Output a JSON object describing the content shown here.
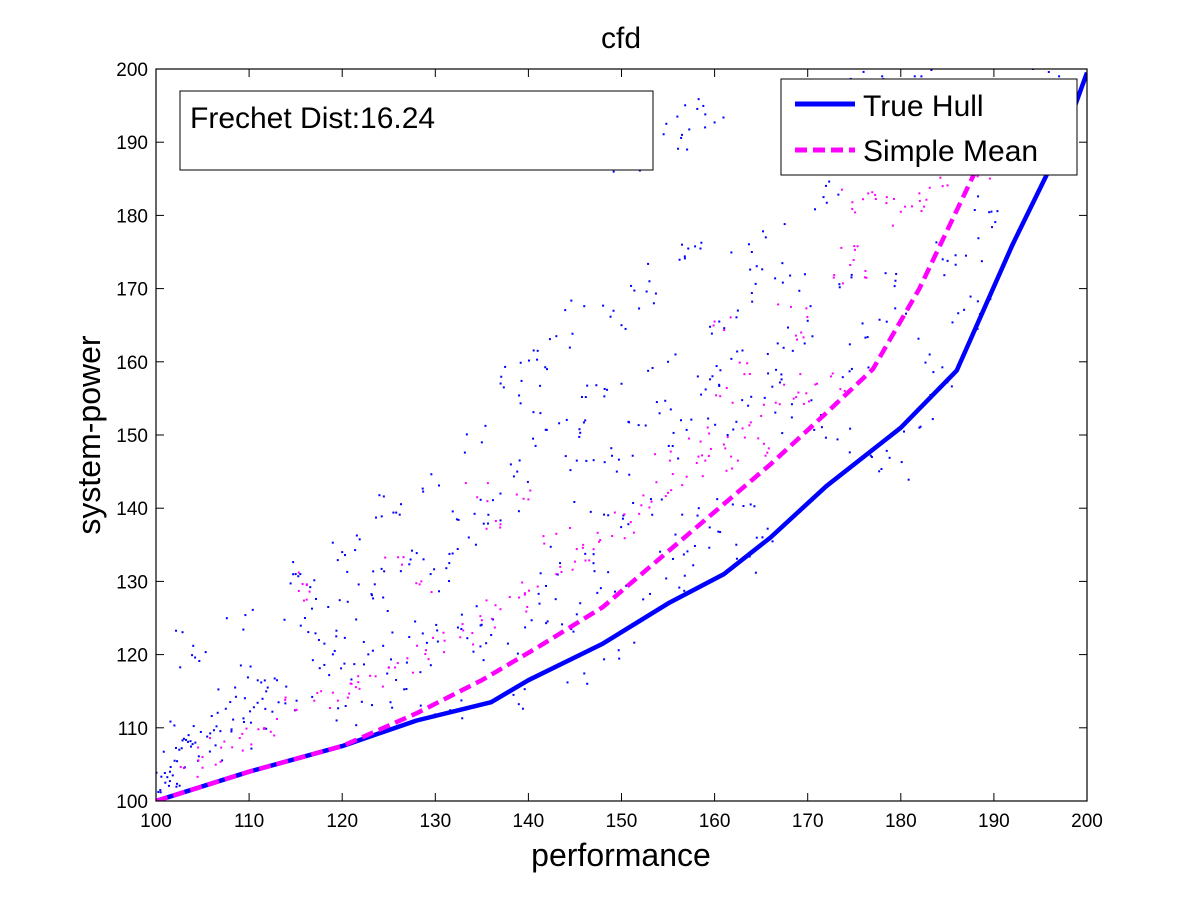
{
  "chart_data": {
    "type": "scatter",
    "title": "cfd",
    "xlabel": "performance",
    "ylabel": "system-power",
    "xlim": [
      100,
      200
    ],
    "ylim": [
      100,
      200
    ],
    "xticks": [
      100,
      110,
      120,
      130,
      140,
      150,
      160,
      170,
      180,
      190,
      200
    ],
    "yticks": [
      100,
      110,
      120,
      130,
      140,
      150,
      160,
      170,
      180,
      190,
      200
    ],
    "grid": false,
    "legend_position": "top-right",
    "annotation": "Frechet Dist:16.24",
    "series": [
      {
        "name": "True Hull",
        "kind": "line",
        "style": "solid",
        "color": "#0000ff",
        "x": [
          100,
          110,
          120,
          128,
          136,
          140,
          148,
          155,
          161,
          166,
          172,
          180,
          186,
          192,
          197,
          200
        ],
        "y": [
          100,
          104,
          107.5,
          111,
          113.5,
          116.5,
          121.5,
          127,
          131,
          136,
          143,
          151,
          158.8,
          176,
          189,
          199.5
        ]
      },
      {
        "name": "Simple Mean",
        "kind": "line",
        "style": "dashed",
        "color": "#ff00ff",
        "x": [
          100,
          110,
          120,
          128,
          135,
          141,
          148,
          154,
          160,
          166,
          172,
          177,
          182,
          188,
          193
        ],
        "y": [
          100,
          104,
          107.5,
          112,
          116.5,
          121,
          126.5,
          133,
          139.5,
          146,
          153,
          159,
          170,
          186,
          198
        ]
      }
    ],
    "scatter_groups": [
      {
        "color": "#0000ff",
        "spread": [
          0.5,
          2.2
        ],
        "points": [
          [
            100.5,
            101.2
          ],
          [
            101,
            102.5
          ],
          [
            101.5,
            104
          ],
          [
            102,
            105.5
          ],
          [
            102.5,
            107
          ],
          [
            103,
            108.5
          ],
          [
            103.5,
            109
          ],
          [
            104,
            121.2
          ],
          [
            104.2,
            119.6
          ],
          [
            109.6,
            125.4
          ],
          [
            115,
            131
          ],
          [
            115.5,
            131
          ],
          [
            120,
            134
          ],
          [
            120.3,
            133.6
          ],
          [
            125.5,
            139.4
          ],
          [
            125.8,
            139.4
          ],
          [
            145.8,
            191.8
          ],
          [
            148,
            188.8
          ],
          [
            148.6,
            189.8
          ],
          [
            151,
            188.3
          ],
          [
            152,
            188.3
          ],
          [
            156,
            193.5
          ],
          [
            156.5,
            191
          ],
          [
            159,
            193.8
          ],
          [
            160,
            192.7
          ],
          [
            176,
            199.6
          ],
          [
            178,
            199
          ],
          [
            181.5,
            199
          ],
          [
            194.2,
            200
          ],
          [
            197,
            199
          ],
          [
            156.5,
            176
          ],
          [
            156.8,
            174.4
          ],
          [
            153,
            171
          ],
          [
            152.7,
            169.6
          ],
          [
            146,
            167.6
          ],
          [
            150,
            165
          ],
          [
            143,
            163.5
          ],
          [
            141,
            161.5
          ],
          [
            142,
            159
          ],
          [
            137.5,
            159.3
          ],
          [
            139,
            155.4
          ],
          [
            145.2,
            146.5
          ],
          [
            149.5,
            145
          ],
          [
            135,
            149
          ],
          [
            160.5,
            165.5
          ],
          [
            168.4,
            161.5
          ],
          [
            174.5,
            158.7
          ],
          [
            182,
            151
          ],
          [
            185,
            157.2
          ],
          [
            188.5,
            166.5
          ],
          [
            187,
            174.5
          ],
          [
            184.5,
            174
          ],
          [
            179.5,
            172
          ],
          [
            172,
            186
          ],
          [
            164,
            175
          ],
          [
            165.5,
            177
          ],
          [
            162.5,
            167
          ],
          [
            170,
            165.6
          ],
          [
            166.6,
            158.9
          ],
          [
            155,
            160
          ],
          [
            160.5,
            156.7
          ],
          [
            150,
            157
          ],
          [
            130.4,
            143.1
          ],
          [
            132.5,
            138.4
          ],
          [
            127.5,
            134.2
          ],
          [
            123.5,
            129.6
          ],
          [
            118.5,
            126.5
          ],
          [
            116,
            125
          ],
          [
            113,
            116.5
          ],
          [
            112,
            115.5
          ],
          [
            107.5,
            112.6
          ],
          [
            106.5,
            110.2
          ],
          [
            105.5,
            108.8
          ],
          [
            108.5,
            115.5
          ],
          [
            111.3,
            116.2
          ],
          [
            117.5,
            122
          ],
          [
            119.2,
            120.5
          ],
          [
            121.5,
            124.8
          ],
          [
            124.4,
            127.8
          ],
          [
            126.3,
            131.4
          ],
          [
            129.5,
            131
          ],
          [
            131.5,
            132.5
          ],
          [
            133.6,
            136
          ],
          [
            135.7,
            139.1
          ],
          [
            137,
            142
          ],
          [
            138.8,
            145
          ],
          [
            140.5,
            149.5
          ],
          [
            143.3,
            151.6
          ],
          [
            146.1,
            152
          ],
          [
            147.3,
            156.8
          ],
          [
            148.9,
            148.2
          ],
          [
            152.6,
            151.3
          ],
          [
            155.5,
            148.5
          ],
          [
            157.5,
            152.1
          ],
          [
            161.4,
            150
          ],
          [
            163.6,
            154
          ],
          [
            166.2,
            156.6
          ],
          [
            168.3,
            152.4
          ],
          [
            170.7,
            150.7
          ],
          [
            173.2,
            149.4
          ],
          [
            176.9,
            147
          ],
          [
            180.1,
            146.3
          ],
          [
            176.2,
            163.3
          ],
          [
            179.4,
            167.3
          ],
          [
            183.1,
            161
          ],
          [
            186.8,
            167.1
          ],
          [
            188.3,
            182.6
          ],
          [
            189.8,
            178.4
          ],
          [
            173.4,
            170.6
          ],
          [
            169.1,
            169.7
          ],
          [
            166.5,
            171.4
          ],
          [
            171.7,
            182.5
          ],
          [
            161.8,
            160.4
          ],
          [
            158.2,
            158
          ],
          [
            153.8,
            154.5
          ],
          [
            146.7,
            139.5
          ],
          [
            150.2,
            139
          ],
          [
            153.3,
            139.1
          ],
          [
            155.8,
            136.4
          ],
          [
            158.3,
            140
          ],
          [
            160.4,
            136.8
          ],
          [
            163.1,
            140.3
          ],
          [
            165.7,
            137.2
          ],
          [
            143.4,
            132.5
          ],
          [
            147.1,
            131.4
          ],
          [
            150.5,
            129.4
          ],
          [
            141.1,
            128.3
          ],
          [
            136.2,
            124.8
          ],
          [
            132.8,
            123.5
          ],
          [
            130.2,
            123.3
          ],
          [
            127.2,
            122.4
          ],
          [
            124.4,
            121.2
          ],
          [
            121.3,
            118.7
          ],
          [
            118.6,
            117.2
          ],
          [
            115.1,
            113.7
          ],
          [
            112.5,
            112.2
          ],
          [
            110.2,
            110.7
          ],
          [
            108.1,
            109.5
          ],
          [
            106.4,
            107.6
          ],
          [
            104.6,
            106.1
          ],
          [
            103.1,
            104.6
          ],
          [
            101.8,
            103.5
          ],
          [
            119.4,
            111
          ],
          [
            123.2,
            113.1
          ],
          [
            126.9,
            115.3
          ],
          [
            128.4,
            117.6
          ],
          [
            134.1,
            120.4
          ],
          [
            137.8,
            121.5
          ],
          [
            141.9,
            124.3
          ],
          [
            145.2,
            125.5
          ],
          [
            149.3,
            128.6
          ],
          [
            154.8,
            130.4
          ],
          [
            157.7,
            132.2
          ],
          [
            162.4,
            133.1
          ],
          [
            144.2,
            116.2
          ],
          [
            149.7,
            120.6
          ],
          [
            138.4,
            114.5
          ],
          [
            131.6,
            112.4
          ]
        ]
      },
      {
        "color": "#ff00ff",
        "spread": [
          0.6,
          1.8
        ],
        "points": [
          [
            103,
            104.5
          ],
          [
            105,
            106
          ],
          [
            107,
            107.3
          ],
          [
            109,
            108.6
          ],
          [
            111,
            109.8
          ],
          [
            113,
            111.2
          ],
          [
            115,
            112.4
          ],
          [
            117,
            113.7
          ],
          [
            119,
            114.8
          ],
          [
            121,
            116
          ],
          [
            123,
            117.1
          ],
          [
            125,
            118.2
          ],
          [
            127,
            119.5
          ],
          [
            129,
            120.6
          ],
          [
            131,
            121.9
          ],
          [
            133,
            123.3
          ],
          [
            135,
            124.7
          ],
          [
            137,
            126.2
          ],
          [
            139,
            127.8
          ],
          [
            141,
            129.3
          ],
          [
            143,
            131
          ],
          [
            145,
            132.7
          ],
          [
            147,
            134.4
          ],
          [
            149,
            136.2
          ],
          [
            151,
            138.1
          ],
          [
            153,
            140.1
          ],
          [
            155,
            142.1
          ],
          [
            157,
            144.3
          ],
          [
            159,
            146.5
          ],
          [
            161,
            148.7
          ],
          [
            163,
            150.9
          ],
          [
            165,
            152.6
          ],
          [
            167,
            154.2
          ],
          [
            169,
            155.8
          ],
          [
            171,
            157
          ],
          [
            172.5,
            158
          ],
          [
            174.8,
            181.8
          ],
          [
            176.5,
            183
          ],
          [
            178.5,
            182.5
          ],
          [
            180,
            180.5
          ],
          [
            182.5,
            181.2
          ],
          [
            184.5,
            184
          ],
          [
            186.5,
            186
          ],
          [
            188,
            187
          ],
          [
            185.5,
            189.5
          ],
          [
            116.2,
            129.6
          ],
          [
            116.5,
            128.6
          ],
          [
            126,
            133.3
          ],
          [
            128.5,
            130
          ],
          [
            134.5,
            141.5
          ],
          [
            137,
            137.8
          ],
          [
            140,
            141.2
          ],
          [
            143,
            136.5
          ],
          [
            160,
            165.5
          ],
          [
            163.5,
            159.8
          ],
          [
            169.3,
            164
          ],
          [
            172.8,
            171.5
          ],
          [
            175,
            175.8
          ],
          [
            176.2,
            172.4
          ],
          [
            168.2,
            167.5
          ],
          [
            160.6,
            155.3
          ],
          [
            165.3,
            148.8
          ],
          [
            162.5,
            146.5
          ],
          [
            158.5,
            149.1
          ],
          [
            155.2,
            146.5
          ]
        ]
      }
    ]
  }
}
